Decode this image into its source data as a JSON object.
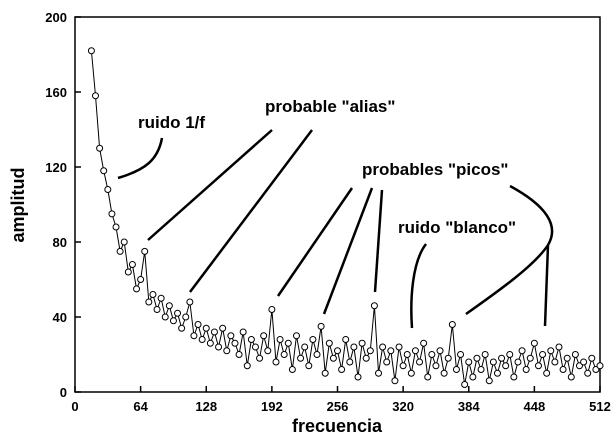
{
  "chart_data": {
    "type": "line",
    "x_label": "frecuencia",
    "y_label": "amplitud",
    "xlim": [
      0,
      512
    ],
    "xticks": [
      0,
      64,
      128,
      192,
      256,
      320,
      384,
      448,
      512
    ],
    "ylim": [
      0,
      200
    ],
    "yticks": [
      0,
      40,
      80,
      120,
      160,
      200
    ],
    "color": "#000000",
    "marker": "circle",
    "annotations": [
      "ruido 1/f",
      "probable \"alias\"",
      "probables \"picos\"",
      "ruido \"blanco\""
    ],
    "x": [
      16,
      20,
      24,
      28,
      32,
      36,
      40,
      44,
      48,
      52,
      56,
      60,
      64,
      68,
      72,
      76,
      80,
      84,
      88,
      92,
      96,
      100,
      104,
      108,
      112,
      116,
      120,
      124,
      128,
      132,
      136,
      140,
      144,
      148,
      152,
      156,
      160,
      164,
      168,
      172,
      176,
      180,
      184,
      188,
      192,
      196,
      200,
      204,
      208,
      212,
      216,
      220,
      224,
      228,
      232,
      236,
      240,
      244,
      248,
      252,
      256,
      260,
      264,
      268,
      272,
      276,
      280,
      284,
      288,
      292,
      296,
      300,
      304,
      308,
      312,
      316,
      320,
      324,
      328,
      332,
      336,
      340,
      344,
      348,
      352,
      356,
      360,
      364,
      368,
      372,
      376,
      380,
      384,
      388,
      392,
      396,
      400,
      404,
      408,
      412,
      416,
      420,
      424,
      428,
      432,
      436,
      440,
      444,
      448,
      452,
      456,
      460,
      464,
      468,
      472,
      476,
      480,
      484,
      488,
      492,
      496,
      500,
      504,
      508,
      512
    ],
    "values": [
      182,
      158,
      130,
      118,
      108,
      95,
      88,
      75,
      80,
      64,
      68,
      55,
      60,
      75,
      48,
      52,
      44,
      50,
      40,
      46,
      38,
      42,
      34,
      40,
      48,
      30,
      36,
      28,
      34,
      26,
      32,
      24,
      34,
      22,
      30,
      26,
      20,
      32,
      14,
      28,
      24,
      18,
      30,
      22,
      44,
      16,
      28,
      20,
      26,
      12,
      30,
      18,
      24,
      14,
      28,
      20,
      35,
      10,
      26,
      18,
      22,
      12,
      28,
      16,
      24,
      8,
      26,
      18,
      22,
      46,
      10,
      24,
      16,
      22,
      6,
      24,
      14,
      20,
      10,
      22,
      16,
      26,
      8,
      20,
      14,
      22,
      10,
      18,
      36,
      12,
      20,
      4,
      16,
      8,
      18,
      12,
      20,
      6,
      16,
      10,
      18,
      14,
      20,
      8,
      16,
      22,
      12,
      18,
      26,
      14,
      20,
      10,
      22,
      16,
      24,
      12,
      18,
      8,
      20,
      14,
      16,
      10,
      18,
      12,
      14
    ]
  }
}
